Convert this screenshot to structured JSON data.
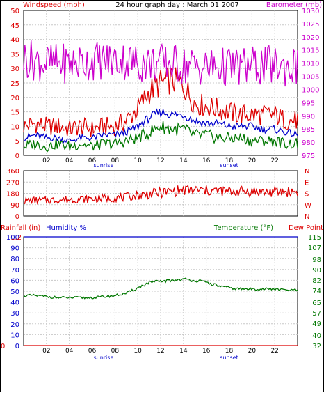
{
  "header": {
    "left_label": "Windspeed (mph)",
    "title": "24 hour graph day : March 01 2007",
    "right_label": "Barometer (mb)"
  },
  "colors": {
    "red": "#dd0000",
    "blue": "#0000cc",
    "green": "#007700",
    "magenta": "#cc00cc",
    "grid": "#c8c8c8"
  },
  "x_axis": {
    "ticks": [
      "02",
      "04",
      "06",
      "08",
      "10",
      "12",
      "14",
      "16",
      "18",
      "20",
      "22"
    ],
    "sunrise": "sunrise",
    "sunset": "sunset",
    "sunrise_hour": 7,
    "sunset_hour": 18
  },
  "chart_data": [
    {
      "type": "line",
      "name": "wind-barometer",
      "title": "24 hour graph day : March 01 2007",
      "ylabel_left": "Windspeed (mph)",
      "ylabel_right": "Barometer (mb)",
      "ylim_left": [
        0,
        50
      ],
      "ylim_right": [
        975,
        1030
      ],
      "yticks_left": [
        0,
        5,
        10,
        15,
        20,
        25,
        30,
        35,
        40,
        45,
        50
      ],
      "yticks_right": [
        975,
        980,
        985,
        990,
        995,
        1000,
        1005,
        1010,
        1015,
        1020,
        1025,
        1030
      ],
      "grid": true,
      "x": [
        0,
        1,
        2,
        3,
        4,
        5,
        6,
        7,
        8,
        9,
        10,
        11,
        12,
        13,
        14,
        15,
        16,
        17,
        18,
        19,
        20,
        21,
        22,
        23,
        24
      ],
      "series": [
        {
          "color": "red",
          "axis": "left",
          "values": [
            10,
            11,
            10,
            10,
            9,
            10,
            9,
            10,
            10,
            12,
            16,
            22,
            25,
            26,
            24,
            18,
            17,
            16,
            15,
            14,
            14,
            14,
            14,
            12,
            12
          ]
        },
        {
          "color": "blue",
          "axis": "left",
          "values": [
            6,
            7,
            6,
            6,
            5,
            6,
            6,
            7,
            7,
            8,
            10,
            13,
            15,
            14,
            14,
            12,
            11,
            11,
            10,
            10,
            10,
            9,
            9,
            8,
            7
          ]
        },
        {
          "color": "green",
          "axis": "left",
          "values": [
            3,
            4,
            3,
            4,
            3,
            4,
            3,
            4,
            4,
            5,
            6,
            8,
            10,
            9,
            9,
            7,
            7,
            6,
            6,
            6,
            5,
            5,
            5,
            4,
            4
          ]
        },
        {
          "color": "magenta",
          "axis": "right",
          "values": [
            1012,
            1011,
            1010,
            1010,
            1010,
            1010,
            1011,
            1011,
            1011,
            1011,
            1010,
            1010,
            1010,
            1010,
            1009,
            1009,
            1008.5,
            1008.5,
            1008.5,
            1008.5,
            1009,
            1009,
            1009,
            1008.5,
            1008.5
          ]
        }
      ]
    },
    {
      "type": "line",
      "name": "wind-direction",
      "ylim": [
        0,
        360
      ],
      "yticks": [
        0,
        90,
        180,
        270,
        360
      ],
      "right_labels": [
        "N",
        "W",
        "S",
        "E",
        "N"
      ],
      "grid": true,
      "x": [
        0,
        1,
        2,
        3,
        4,
        5,
        6,
        7,
        8,
        9,
        10,
        11,
        12,
        13,
        14,
        15,
        16,
        17,
        18,
        19,
        20,
        21,
        22,
        23,
        24
      ],
      "series": [
        {
          "color": "red",
          "values": [
            120,
            125,
            125,
            128,
            130,
            135,
            135,
            140,
            145,
            150,
            165,
            175,
            185,
            195,
            205,
            205,
            200,
            200,
            195,
            195,
            195,
            190,
            190,
            192,
            192
          ]
        }
      ]
    },
    {
      "type": "line",
      "name": "rain-humidity-temperature",
      "ylabel_left_1": "Rainfall (in)",
      "ylabel_left_2": "Humidity %",
      "ylabel_right_1": "Temperature (°F)",
      "ylabel_right_2": "Dew Point",
      "ylim_left": [
        0,
        100
      ],
      "ylim_right": [
        32,
        115
      ],
      "yticks_left": [
        0,
        10,
        20,
        30,
        40,
        50,
        60,
        70,
        80,
        90,
        100
      ],
      "yticks_right": [
        32,
        40,
        49,
        57,
        65,
        74,
        82,
        90,
        98,
        107,
        115
      ],
      "rain_ticks": [
        "0",
        "1.2"
      ],
      "grid": true,
      "x": [
        0,
        1,
        2,
        3,
        4,
        5,
        6,
        7,
        8,
        9,
        10,
        11,
        12,
        13,
        14,
        15,
        16,
        17,
        18,
        19,
        20,
        21,
        22,
        23,
        24
      ],
      "series": [
        {
          "color": "green",
          "axis": "left",
          "values": [
            46,
            46,
            45,
            44,
            44,
            44,
            44,
            45,
            46,
            48,
            53,
            58,
            59,
            60,
            61,
            60,
            58,
            55,
            53,
            52,
            52,
            52,
            52,
            51,
            51
          ]
        },
        {
          "color": "blue",
          "axis": "left",
          "values": [
            100,
            100,
            100,
            100,
            100,
            100,
            100,
            100,
            100,
            100,
            100,
            100,
            100,
            100,
            100,
            100,
            100,
            100,
            100,
            100,
            100,
            100,
            100,
            100,
            100
          ]
        },
        {
          "color": "red",
          "axis": "left",
          "values": [
            0,
            0,
            0,
            0,
            0,
            0,
            0,
            0,
            0,
            0,
            0,
            0,
            0,
            0,
            0,
            0,
            0,
            0,
            0,
            0,
            0,
            0,
            0,
            0,
            0
          ]
        }
      ]
    }
  ]
}
